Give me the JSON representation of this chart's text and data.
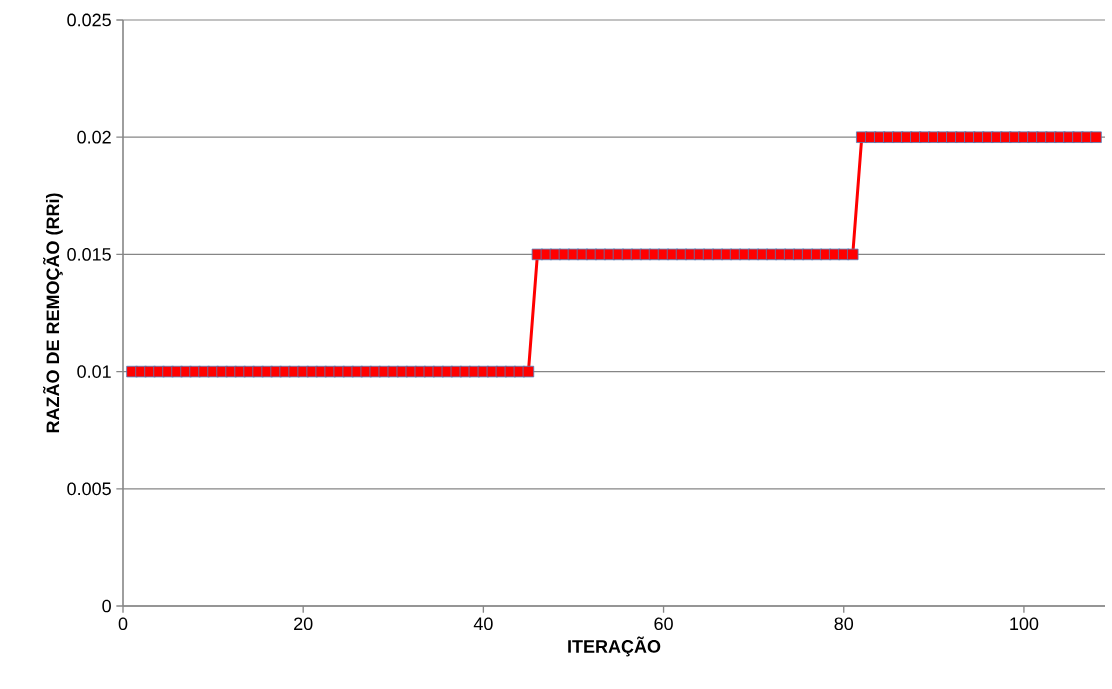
{
  "chart_data": {
    "type": "line",
    "xlabel": "ITERAÇÃO",
    "ylabel": "RAZÃO DE REMOÇÃO (RRi)",
    "x": [
      1,
      2,
      3,
      4,
      5,
      6,
      7,
      8,
      9,
      10,
      11,
      12,
      13,
      14,
      15,
      16,
      17,
      18,
      19,
      20,
      21,
      22,
      23,
      24,
      25,
      26,
      27,
      28,
      29,
      30,
      31,
      32,
      33,
      34,
      35,
      36,
      37,
      38,
      39,
      40,
      41,
      42,
      43,
      44,
      45,
      46,
      47,
      48,
      49,
      50,
      51,
      52,
      53,
      54,
      55,
      56,
      57,
      58,
      59,
      60,
      61,
      62,
      63,
      64,
      65,
      66,
      67,
      68,
      69,
      70,
      71,
      72,
      73,
      74,
      75,
      76,
      77,
      78,
      79,
      80,
      81,
      82,
      83,
      84,
      85,
      86,
      87,
      88,
      89,
      90,
      91,
      92,
      93,
      94,
      95,
      96,
      97,
      98,
      99,
      100,
      101,
      102,
      103,
      104,
      105,
      106,
      107,
      108
    ],
    "series": [
      {
        "color": "#ff0000",
        "values": [
          0.01,
          0.01,
          0.01,
          0.01,
          0.01,
          0.01,
          0.01,
          0.01,
          0.01,
          0.01,
          0.01,
          0.01,
          0.01,
          0.01,
          0.01,
          0.01,
          0.01,
          0.01,
          0.01,
          0.01,
          0.01,
          0.01,
          0.01,
          0.01,
          0.01,
          0.01,
          0.01,
          0.01,
          0.01,
          0.01,
          0.01,
          0.01,
          0.01,
          0.01,
          0.01,
          0.01,
          0.01,
          0.01,
          0.01,
          0.01,
          0.01,
          0.01,
          0.01,
          0.01,
          0.01,
          0.015,
          0.015,
          0.015,
          0.015,
          0.015,
          0.015,
          0.015,
          0.015,
          0.015,
          0.015,
          0.015,
          0.015,
          0.015,
          0.015,
          0.015,
          0.015,
          0.015,
          0.015,
          0.015,
          0.015,
          0.015,
          0.015,
          0.015,
          0.015,
          0.015,
          0.015,
          0.015,
          0.015,
          0.015,
          0.015,
          0.015,
          0.015,
          0.015,
          0.015,
          0.015,
          0.015,
          0.02,
          0.02,
          0.02,
          0.02,
          0.02,
          0.02,
          0.02,
          0.02,
          0.02,
          0.02,
          0.02,
          0.02,
          0.02,
          0.02,
          0.02,
          0.02,
          0.02,
          0.02,
          0.02,
          0.02,
          0.02,
          0.02,
          0.02,
          0.02,
          0.02,
          0.02,
          0.02
        ]
      }
    ],
    "xlim": [
      0,
      109
    ],
    "xticks": [
      0,
      20,
      40,
      60,
      80,
      100
    ],
    "ylim": [
      0,
      0.025
    ],
    "yticks": [
      0,
      0.005,
      0.01,
      0.015,
      0.02,
      0.025
    ],
    "grid": "y",
    "marker": "square",
    "line_style": "solid"
  }
}
